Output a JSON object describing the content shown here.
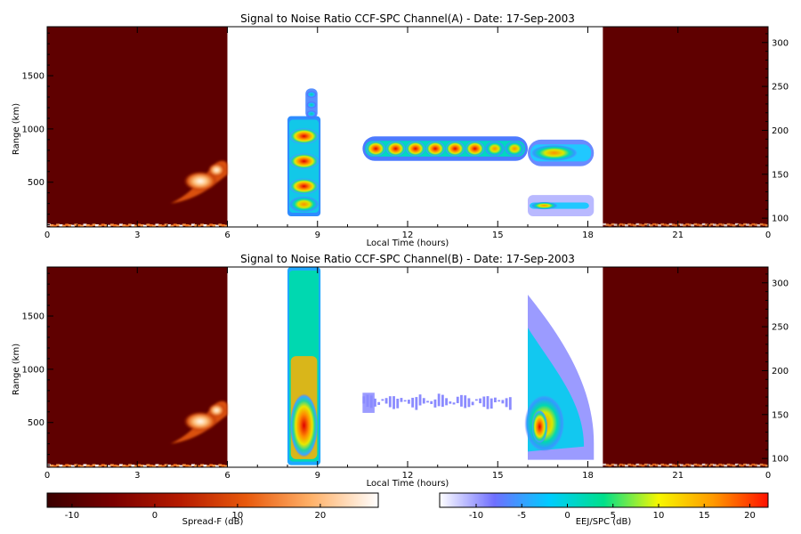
{
  "colors": {
    "spread_f_bg": "#5f0000",
    "axis": "#000000"
  },
  "chart_data": [
    {
      "type": "heatmap",
      "title": "Signal to Noise Ratio CCF-SPC Channel(A) - Date: 17-Sep-2003",
      "xlabel": "Local Time (hours)",
      "ylabel": "Range (km)",
      "xlim": [
        0,
        24
      ],
      "ylim": [
        80,
        1960
      ],
      "y2lim": [
        90,
        318
      ],
      "xticks": [
        "0",
        "3",
        "6",
        "9",
        "12",
        "15",
        "18",
        "21",
        "0"
      ],
      "xtick_values": [
        0,
        3,
        6,
        9,
        12,
        15,
        18,
        21,
        24
      ],
      "yticks": [
        "500",
        "1000",
        "1500"
      ],
      "ytick_values": [
        500,
        1000,
        1500
      ],
      "y2ticks": [
        "100",
        "150",
        "200",
        "250",
        "300"
      ],
      "y2tick_values": [
        100,
        150,
        200,
        250,
        300
      ],
      "regions": [
        {
          "name": "Spread-F",
          "x": [
            0,
            6
          ]
        },
        {
          "name": "EEJ/SPC",
          "x": [
            6,
            18.5
          ]
        },
        {
          "name": "Spread-F",
          "x": [
            18.5,
            24
          ]
        }
      ],
      "features": [
        {
          "kind": "spread_f_plume",
          "x": [
            4.0,
            6.0
          ],
          "y": [
            300,
            720
          ],
          "snr_db": 12
        },
        {
          "kind": "spread_f_bottom_echo",
          "x": [
            0,
            6
          ],
          "y": [
            90,
            110
          ],
          "snr_db": 15
        },
        {
          "kind": "spread_f_bottom_echo",
          "x": [
            18.5,
            24
          ],
          "y": [
            95,
            115
          ],
          "snr_db": 8
        },
        {
          "kind": "eej_column",
          "x": [
            8.0,
            9.1
          ],
          "y": [
            180,
            1120
          ],
          "snr_db": 18
        },
        {
          "kind": "eej_column_top",
          "x": [
            8.6,
            9.0
          ],
          "y": [
            1100,
            1380
          ],
          "snr_db": 0
        },
        {
          "kind": "spc_band",
          "x": [
            10.5,
            16.0
          ],
          "y": [
            700,
            930
          ],
          "snr_db": 16
        },
        {
          "kind": "spc_band",
          "x": [
            16.0,
            18.2
          ],
          "y": [
            650,
            900
          ],
          "snr_db": 4
        },
        {
          "kind": "spc_lower",
          "x": [
            16.0,
            18.2
          ],
          "y": [
            180,
            380
          ],
          "snr_db": 5
        }
      ]
    },
    {
      "type": "heatmap",
      "title": "Signal to Noise Ratio CCF-SPC Channel(B) - Date: 17-Sep-2003",
      "xlabel": "Local Time (hours)",
      "ylabel": "Range (km)",
      "xlim": [
        0,
        24
      ],
      "ylim": [
        80,
        1960
      ],
      "y2lim": [
        90,
        318
      ],
      "xticks": [
        "0",
        "3",
        "6",
        "9",
        "12",
        "15",
        "18",
        "21",
        "0"
      ],
      "xtick_values": [
        0,
        3,
        6,
        9,
        12,
        15,
        18,
        21,
        24
      ],
      "yticks": [
        "500",
        "1000",
        "1500"
      ],
      "ytick_values": [
        500,
        1000,
        1500
      ],
      "y2ticks": [
        "100",
        "150",
        "200",
        "250",
        "300"
      ],
      "y2tick_values": [
        100,
        150,
        200,
        250,
        300
      ],
      "regions": [
        {
          "name": "Spread-F",
          "x": [
            0,
            6
          ]
        },
        {
          "name": "EEJ/SPC",
          "x": [
            6,
            18.5
          ]
        },
        {
          "name": "Spread-F",
          "x": [
            18.5,
            24
          ]
        }
      ],
      "features": [
        {
          "kind": "spread_f_plume",
          "x": [
            4.0,
            6.0
          ],
          "y": [
            300,
            720
          ],
          "snr_db": 12
        },
        {
          "kind": "spread_f_bottom_echo",
          "x": [
            0,
            6
          ],
          "y": [
            90,
            110
          ],
          "snr_db": 15
        },
        {
          "kind": "spread_f_bottom_echo",
          "x": [
            18.5,
            24
          ],
          "y": [
            95,
            115
          ],
          "snr_db": 8
        },
        {
          "kind": "eej_column",
          "x": [
            8.0,
            9.1
          ],
          "y": [
            100,
            1960
          ],
          "snr_db": 20
        },
        {
          "kind": "spc_band_faint",
          "x": [
            10.5,
            15.5
          ],
          "y": [
            550,
            820
          ],
          "snr_db": -8
        },
        {
          "kind": "spc_fan",
          "x": [
            16.0,
            18.2
          ],
          "y": [
            150,
            1700
          ],
          "snr_db": 10
        }
      ]
    },
    {
      "type": "colorbar",
      "label": "Spread-F (dB)",
      "range": [
        -13,
        27
      ],
      "ticks": [
        "-10",
        "0",
        "10",
        "20"
      ],
      "tick_values": [
        -10,
        0,
        10,
        20
      ],
      "colors": [
        "#3a0000",
        "#7a0000",
        "#b51a00",
        "#e8590c",
        "#ffb26a",
        "#ffffff"
      ]
    },
    {
      "type": "colorbar",
      "label": "EEJ/SPC (dB)",
      "range": [
        -14,
        22
      ],
      "ticks": [
        "-10",
        "-5",
        "0",
        "5",
        "10",
        "15",
        "20"
      ],
      "tick_values": [
        -10,
        -5,
        0,
        5,
        10,
        15,
        20
      ],
      "colors": [
        "#ffffff",
        "#6f6fff",
        "#00ccff",
        "#00e08a",
        "#f7f700",
        "#ff9900",
        "#ff1100"
      ]
    }
  ]
}
